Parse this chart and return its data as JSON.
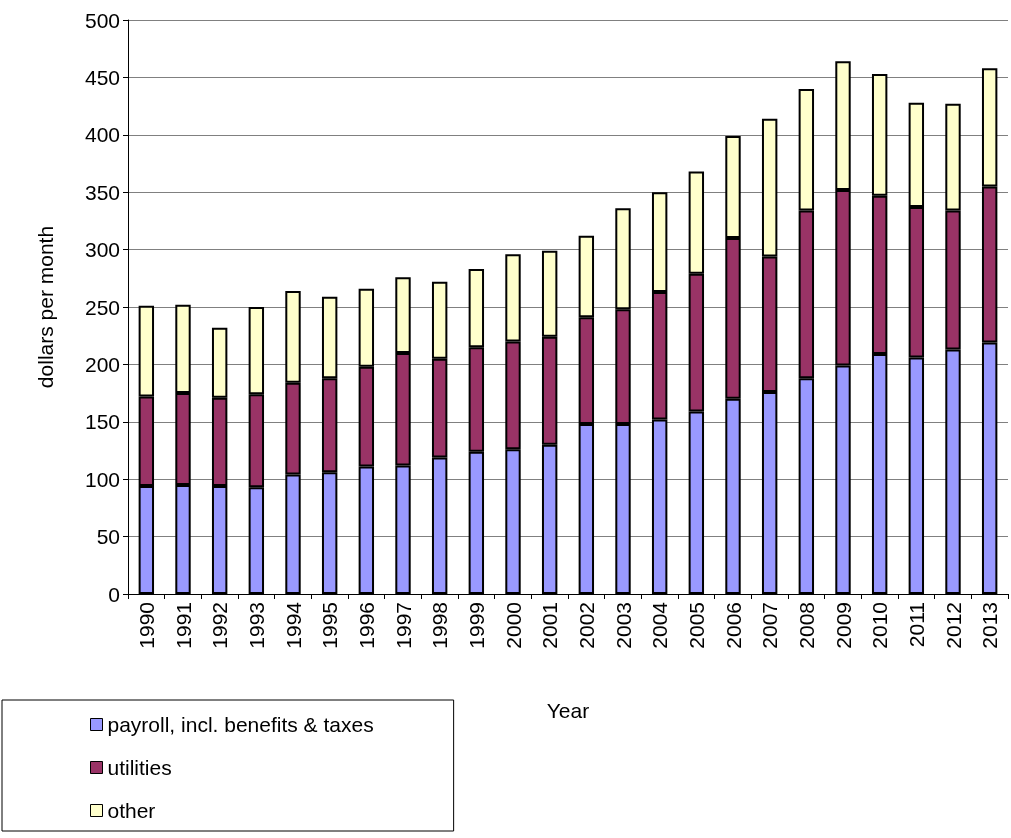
{
  "chart_data": {
    "type": "bar",
    "stacked": true,
    "xlabel": "Year",
    "ylabel": "dollars per month",
    "categories": [
      "1990",
      "1991",
      "1992",
      "1993",
      "1994",
      "1995",
      "1996",
      "1997",
      "1998",
      "1999",
      "2000",
      "2001",
      "2002",
      "2003",
      "2004",
      "2005",
      "2006",
      "2007",
      "2008",
      "2009",
      "2010",
      "2011",
      "2012",
      "2013"
    ],
    "series": [
      {
        "name": "payroll, incl. benefits & taxes",
        "color": "#9999ff",
        "values": [
          94,
          95,
          94,
          93,
          104,
          106,
          111,
          112,
          119,
          124,
          126,
          130,
          148,
          148,
          152,
          159,
          170,
          176,
          188,
          199,
          209,
          206,
          213,
          219
        ]
      },
      {
        "name": "utilities",
        "color": "#993366",
        "values": [
          78,
          80,
          77,
          81,
          80,
          82,
          87,
          98,
          86,
          91,
          94,
          94,
          93,
          100,
          111,
          120,
          140,
          118,
          146,
          153,
          138,
          131,
          121,
          136
        ]
      },
      {
        "name": "other",
        "color": "#ffffcc",
        "values": [
          79,
          77,
          61,
          76,
          80,
          71,
          68,
          66,
          67,
          68,
          76,
          75,
          71,
          88,
          87,
          89,
          89,
          120,
          106,
          112,
          106,
          91,
          93,
          103
        ]
      }
    ],
    "ylim": [
      0,
      500
    ],
    "yticks": [
      0,
      50,
      100,
      150,
      200,
      250,
      300,
      350,
      400,
      450,
      500
    ],
    "grid": "y",
    "legend": "bottom left"
  }
}
